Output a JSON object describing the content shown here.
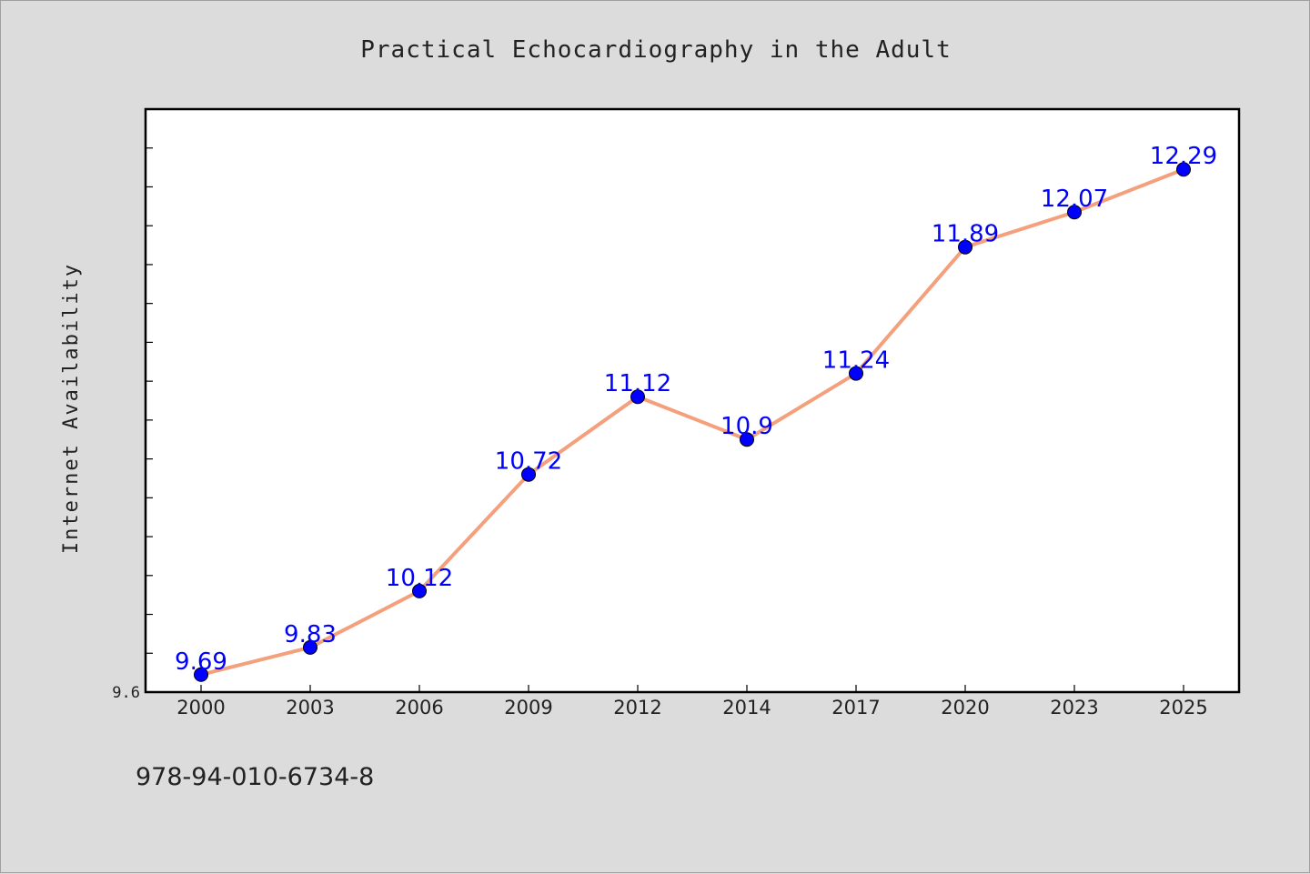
{
  "chart_data": {
    "type": "line",
    "title": "Practical Echocardiography in the Adult",
    "xlabel": "",
    "ylabel": "Internet Availability",
    "categories": [
      "2000",
      "2003",
      "2006",
      "2009",
      "2012",
      "2014",
      "2017",
      "2020",
      "2023",
      "2025"
    ],
    "series": [
      {
        "values": [
          9.69,
          9.83,
          10.12,
          10.72,
          11.12,
          10.9,
          11.24,
          11.89,
          12.07,
          12.29
        ],
        "labels": [
          "9.69",
          "9.83",
          "10.12",
          "10.72",
          "11.12",
          "10.9",
          "11.24",
          "11.89",
          "12.07",
          "12.29"
        ],
        "line_color": "#f4a07c",
        "marker_color": "#0000ff"
      }
    ],
    "ylim": [
      9.6,
      12.6
    ],
    "y_tick_labels": [
      "9.6"
    ],
    "grid": false,
    "legend": "none"
  },
  "footer": {
    "isbn": "978-94-010-6734-8"
  }
}
